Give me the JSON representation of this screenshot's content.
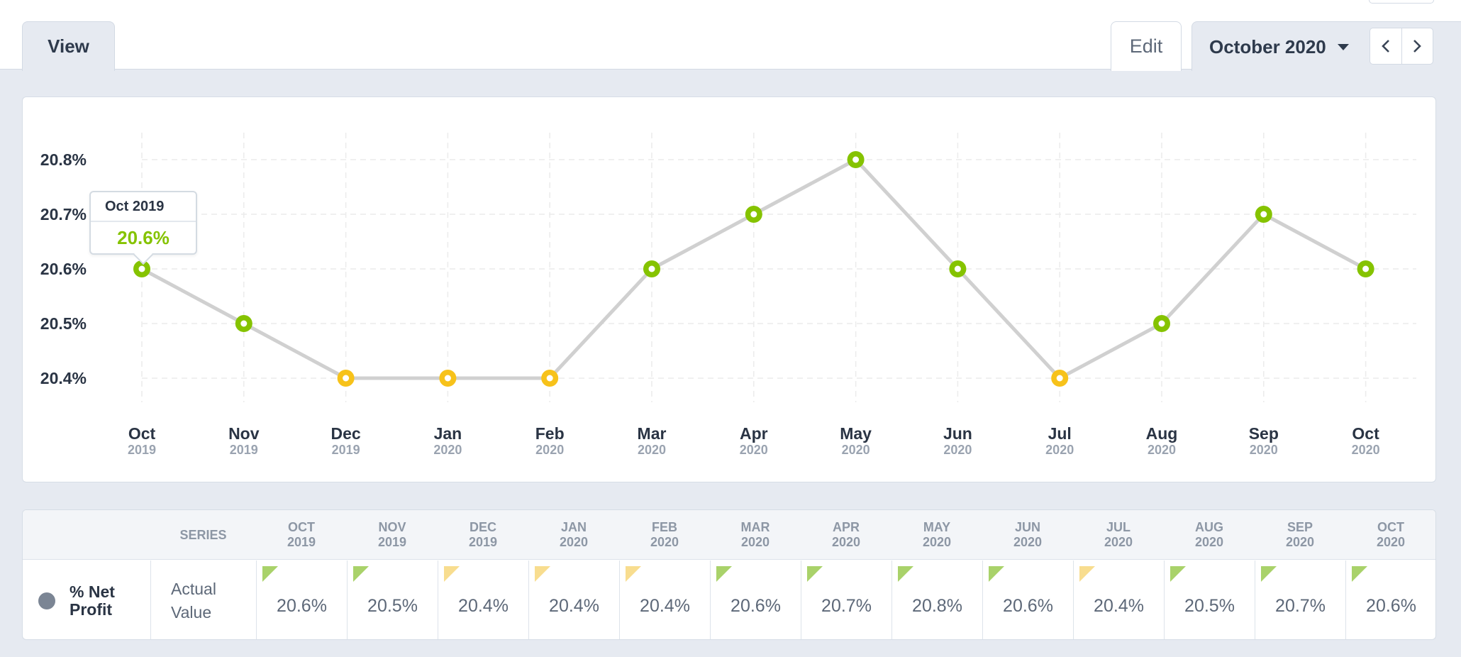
{
  "header": {
    "tab_view": "View",
    "edit_label": "Edit",
    "date_selected": "October 2020",
    "prev_icon": "chevron-left-icon",
    "next_icon": "chevron-right-icon"
  },
  "colors": {
    "good": "#85c300",
    "warn": "#f7c21a",
    "line": "#d0d0d0"
  },
  "tooltip": {
    "title": "Oct 2019",
    "value": "20.6%"
  },
  "chart_data": {
    "type": "line",
    "title": "",
    "xlabel": "",
    "ylabel": "",
    "yticks": [
      "20.8%",
      "20.7%",
      "20.6%",
      "20.5%",
      "20.4%"
    ],
    "ylim": [
      20.4,
      20.8
    ],
    "grid": true,
    "categories": [
      {
        "month": "Oct",
        "year": "2019"
      },
      {
        "month": "Nov",
        "year": "2019"
      },
      {
        "month": "Dec",
        "year": "2019"
      },
      {
        "month": "Jan",
        "year": "2020"
      },
      {
        "month": "Feb",
        "year": "2020"
      },
      {
        "month": "Mar",
        "year": "2020"
      },
      {
        "month": "Apr",
        "year": "2020"
      },
      {
        "month": "May",
        "year": "2020"
      },
      {
        "month": "Jun",
        "year": "2020"
      },
      {
        "month": "Jul",
        "year": "2020"
      },
      {
        "month": "Aug",
        "year": "2020"
      },
      {
        "month": "Sep",
        "year": "2020"
      },
      {
        "month": "Oct",
        "year": "2020"
      }
    ],
    "series": [
      {
        "values": [
          20.6,
          20.5,
          20.4,
          20.4,
          20.4,
          20.6,
          20.7,
          20.8,
          20.6,
          20.4,
          20.5,
          20.7,
          20.6
        ],
        "status": [
          "good",
          "good",
          "warn",
          "warn",
          "warn",
          "good",
          "good",
          "good",
          "good",
          "warn",
          "good",
          "good",
          "good"
        ]
      }
    ]
  },
  "table": {
    "series_header": "SERIES",
    "columns": [
      {
        "m": "OCT",
        "y": "2019"
      },
      {
        "m": "NOV",
        "y": "2019"
      },
      {
        "m": "DEC",
        "y": "2019"
      },
      {
        "m": "JAN",
        "y": "2020"
      },
      {
        "m": "FEB",
        "y": "2020"
      },
      {
        "m": "MAR",
        "y": "2020"
      },
      {
        "m": "APR",
        "y": "2020"
      },
      {
        "m": "MAY",
        "y": "2020"
      },
      {
        "m": "JUN",
        "y": "2020"
      },
      {
        "m": "JUL",
        "y": "2020"
      },
      {
        "m": "AUG",
        "y": "2020"
      },
      {
        "m": "SEP",
        "y": "2020"
      },
      {
        "m": "OCT",
        "y": "2020"
      }
    ],
    "metric_line1": "% Net",
    "metric_line2": "Profit",
    "series_line1": "Actual",
    "series_line2": "Value",
    "values": [
      "20.6%",
      "20.5%",
      "20.4%",
      "20.4%",
      "20.4%",
      "20.6%",
      "20.7%",
      "20.8%",
      "20.6%",
      "20.4%",
      "20.5%",
      "20.7%",
      "20.6%"
    ]
  }
}
